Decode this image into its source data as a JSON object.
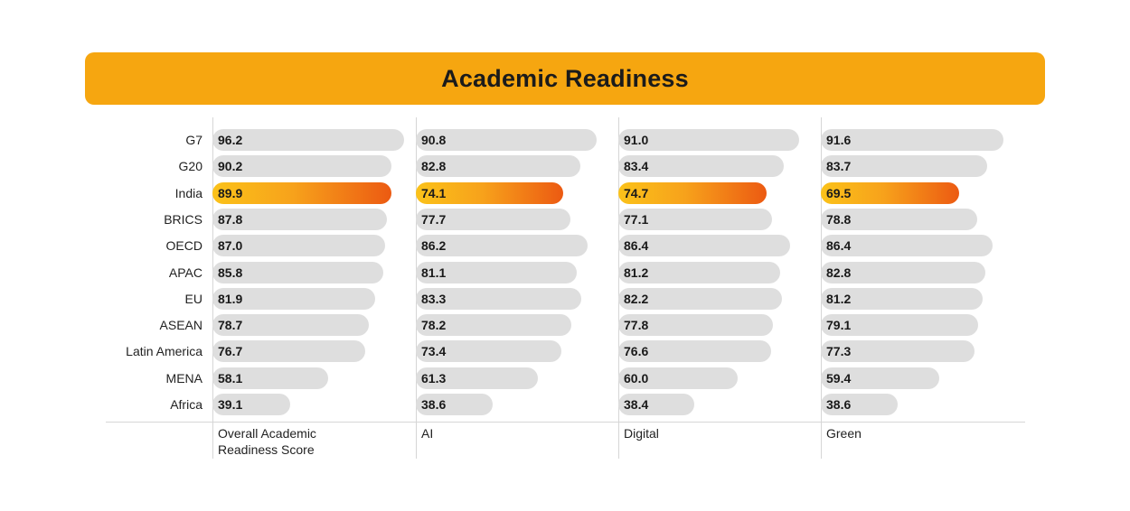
{
  "chart_data": {
    "type": "bar",
    "orientation": "horizontal",
    "title": "Academic Readiness",
    "categories": [
      "G7",
      "G20",
      "India",
      "BRICS",
      "OECD",
      "APAC",
      "EU",
      "ASEAN",
      "Latin America",
      "MENA",
      "Africa"
    ],
    "highlight_category": "India",
    "xlim": [
      0,
      100
    ],
    "series": [
      {
        "name": "Overall Academic Readiness Score",
        "values": [
          96.2,
          90.2,
          89.9,
          87.8,
          87.0,
          85.8,
          81.9,
          78.7,
          76.7,
          58.1,
          39.1
        ],
        "labels": [
          "96.2",
          "90.2",
          "89.9",
          "87.8",
          "87.0",
          "85.8",
          "81.9",
          "78.7",
          "76.7",
          "58.1",
          "39.1"
        ]
      },
      {
        "name": "AI",
        "values": [
          90.8,
          82.8,
          74.1,
          77.7,
          86.2,
          81.1,
          83.3,
          78.2,
          73.4,
          61.3,
          38.6
        ],
        "labels": [
          "90.8",
          "82.8",
          "74.1",
          "77.7",
          "86.2",
          "81.1",
          "83.3",
          "78.2",
          "73.4",
          "61.3",
          "38.6"
        ]
      },
      {
        "name": "Digital",
        "values": [
          91.0,
          83.4,
          74.7,
          77.1,
          86.4,
          81.2,
          82.2,
          77.8,
          76.6,
          60.0,
          38.4
        ],
        "labels": [
          "91.0",
          "83.4",
          "74.7",
          "77.1",
          "86.4",
          "81.2",
          "82.2",
          "77.8",
          "76.6",
          "60.0",
          "38.4"
        ]
      },
      {
        "name": "Green",
        "values": [
          91.6,
          83.7,
          69.5,
          78.8,
          86.4,
          82.8,
          81.2,
          79.1,
          77.3,
          59.4,
          38.6
        ],
        "labels": [
          "91.6",
          "83.7",
          "69.5",
          "78.8",
          "86.4",
          "82.8",
          "81.2",
          "79.1",
          "77.3",
          "59.4",
          "38.6"
        ]
      }
    ],
    "colors": {
      "banner": "#f6a610",
      "bar_default": "#dedede",
      "highlight_start": "#fbc21a",
      "highlight_end": "#ec5a12"
    }
  },
  "column_labels": [
    [
      "Overall Academic",
      "Readiness Score"
    ],
    [
      "AI"
    ],
    [
      "Digital"
    ],
    [
      "Green"
    ]
  ]
}
